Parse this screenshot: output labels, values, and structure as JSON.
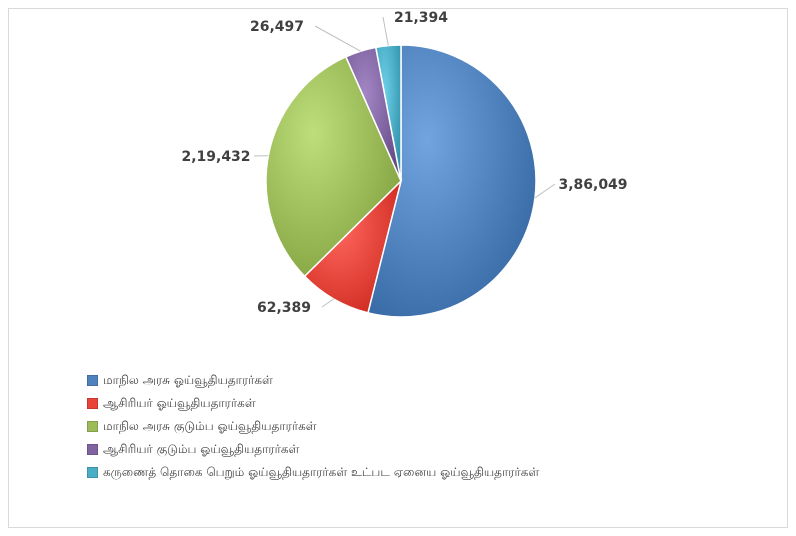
{
  "chart_data": {
    "type": "pie",
    "title": "",
    "slices": [
      {
        "label": "மாநில அரசு ஓய்வூதியதாரர்கள்",
        "value": 386049,
        "display": "3,86,049",
        "color": "#4f81bd"
      },
      {
        "label": "ஆசிரியர் ஓய்வூதியதாரர்கள்",
        "value": 62389,
        "display": "62,389",
        "color": "#e8443a"
      },
      {
        "label": "மாநில அரசு குடும்ப ஓய்வூதியதாரர்கள்",
        "value": 219432,
        "display": "2,19,432",
        "color": "#9bbb59"
      },
      {
        "label": "ஆசிரியர் குடும்ப ஓய்வூதியதாரர்கள்",
        "value": 26497,
        "display": "26,497",
        "color": "#8064a2"
      },
      {
        "label": "கருணைத் தொகை பெறும் ஓய்வூதியதாரர்கள் உட்பட ஏனைய ஓய்வூதியதாரர்கள்",
        "value": 21394,
        "display": "21,394",
        "color": "#4bacc6"
      }
    ],
    "legend_position": "bottom-left"
  }
}
